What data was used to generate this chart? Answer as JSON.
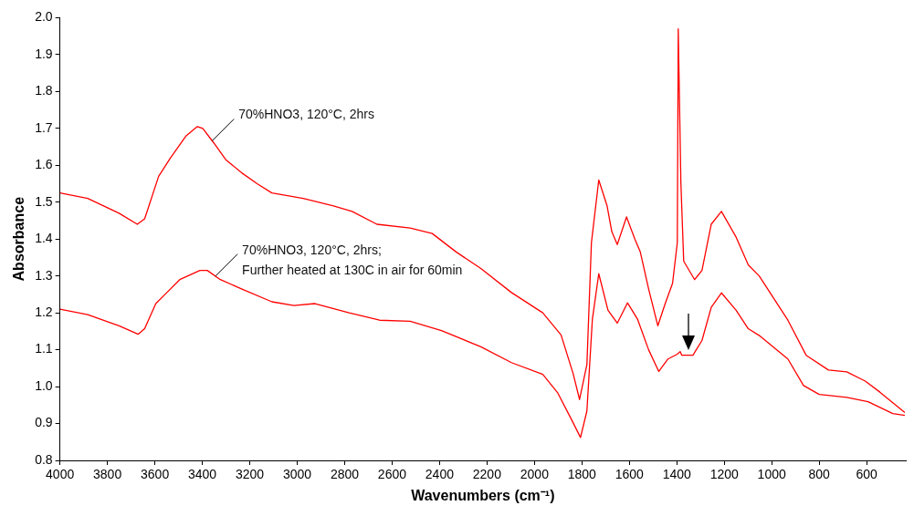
{
  "chart_data": {
    "type": "line",
    "xlabel": "Wavenumbers (cm⁻¹)",
    "ylabel": "Absorbance",
    "xlim": [
      4000,
      435
    ],
    "xticks": [
      4000,
      3800,
      3600,
      3400,
      3200,
      3000,
      2800,
      2600,
      2400,
      2200,
      2000,
      1800,
      1600,
      1400,
      1200,
      1000,
      800,
      600
    ],
    "ylim": [
      0.8,
      2.0
    ],
    "yticks": [
      0.8,
      0.9,
      {
        "value": 1,
        "label": "1.0"
      },
      1.1,
      1.2,
      1.3,
      1.4,
      1.5,
      1.6,
      1.7,
      1.8,
      1.9,
      {
        "value": 2,
        "label": "2.0"
      }
    ],
    "marker": "none",
    "line_style": "solid",
    "series": [
      {
        "color": "#ff0000",
        "x": [
          4000,
          3883,
          3751,
          3674,
          3643,
          3584,
          3534,
          3468,
          3421,
          3398,
          3351,
          3301,
          3235,
          3169,
          3107,
          2975,
          2847,
          2769,
          2664,
          2524,
          2431,
          2330,
          2226,
          2097,
          1965,
          1888,
          1837,
          1810,
          1779,
          1760,
          1729,
          1694,
          1674,
          1651,
          1612,
          1577,
          1554,
          1519,
          1480,
          1449,
          1418,
          1398,
          1394,
          1383,
          1371,
          1325,
          1294,
          1255,
          1212,
          1150,
          1099,
          1053,
          932,
          855,
          761,
          684,
          606,
          544,
          439
        ],
        "values": [
          1.525,
          1.51,
          1.47,
          1.44,
          1.455,
          1.57,
          1.62,
          1.68,
          1.705,
          1.7,
          1.66,
          1.615,
          1.58,
          1.55,
          1.525,
          1.51,
          1.49,
          1.475,
          1.44,
          1.43,
          1.415,
          1.365,
          1.32,
          1.255,
          1.2,
          1.14,
          1.035,
          0.965,
          1.06,
          1.39,
          1.56,
          1.49,
          1.42,
          1.385,
          1.46,
          1.4,
          1.365,
          1.265,
          1.165,
          1.225,
          1.28,
          1.39,
          1.97,
          1.555,
          1.34,
          1.29,
          1.315,
          1.44,
          1.475,
          1.405,
          1.33,
          1.3,
          1.18,
          1.085,
          1.045,
          1.04,
          1.015,
          0.985,
          0.93
        ]
      },
      {
        "color": "#ff0000",
        "x": [
          4000,
          3883,
          3751,
          3670,
          3643,
          3596,
          3557,
          3495,
          3410,
          3379,
          3324,
          3235,
          3107,
          3014,
          2925,
          2781,
          2653,
          2524,
          2392,
          2226,
          2097,
          1965,
          1903,
          1849,
          1806,
          1779,
          1756,
          1729,
          1690,
          1651,
          1608,
          1565,
          1519,
          1476,
          1437,
          1398,
          1386,
          1379,
          1332,
          1294,
          1255,
          1212,
          1150,
          1099,
          1049,
          932,
          866,
          800,
          684,
          594,
          490,
          439
        ],
        "values": [
          1.21,
          1.195,
          1.165,
          1.142,
          1.157,
          1.225,
          1.25,
          1.29,
          1.315,
          1.315,
          1.29,
          1.265,
          1.23,
          1.22,
          1.225,
          1.2,
          1.18,
          1.177,
          1.152,
          1.108,
          1.065,
          1.033,
          0.984,
          0.917,
          0.862,
          0.934,
          1.182,
          1.306,
          1.207,
          1.172,
          1.227,
          1.182,
          1.1,
          1.041,
          1.075,
          1.088,
          1.095,
          1.085,
          1.085,
          1.125,
          1.215,
          1.254,
          1.207,
          1.157,
          1.137,
          1.075,
          1.003,
          0.979,
          0.971,
          0.959,
          0.927,
          0.922
        ]
      }
    ],
    "annotations": [
      {
        "text": "70%HNO3, 120°C, 2hrs",
        "x": 3359,
        "y": 1.666
      },
      {
        "text": "70%HNO3, 120°C, 2hrs;\nFurther heated at 130C in air for 60min",
        "x": 3344,
        "y": 1.3
      }
    ]
  }
}
